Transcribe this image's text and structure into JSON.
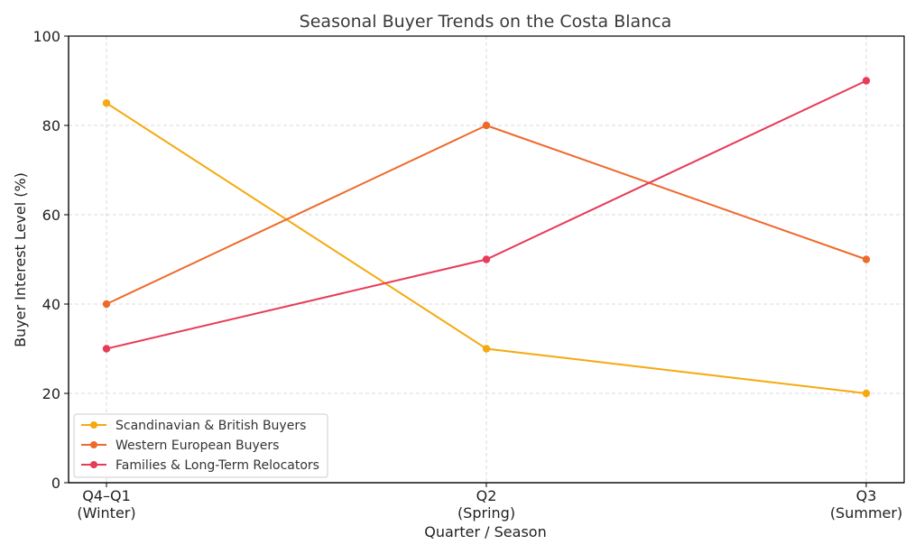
{
  "chart_data": {
    "type": "line",
    "title": "Seasonal Buyer Trends on the Costa Blanca",
    "xlabel": "Quarter / Season",
    "ylabel": "Buyer Interest Level (%)",
    "categories": [
      [
        "Q4–Q1",
        "(Winter)"
      ],
      [
        "Q2",
        "(Spring)"
      ],
      [
        "Q3",
        "(Summer)"
      ]
    ],
    "ylim": [
      0,
      100
    ],
    "yticks": [
      "0",
      "20",
      "40",
      "60",
      "80",
      "100"
    ],
    "grid": true,
    "legend_position": "lower-left",
    "series": [
      {
        "name": "Scandinavian & British Buyers",
        "color": "#F5A90F",
        "values": [
          85,
          30,
          20
        ]
      },
      {
        "name": "Western European Buyers",
        "color": "#EE6A2C",
        "values": [
          40,
          80,
          50
        ]
      },
      {
        "name": "Families & Long-Term Relocators",
        "color": "#E83A59",
        "values": [
          30,
          50,
          90
        ]
      }
    ]
  }
}
